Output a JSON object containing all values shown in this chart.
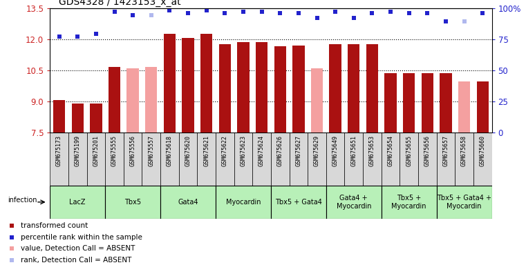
{
  "title": "GDS4328 / 1423153_x_at",
  "samples": [
    "GSM675173",
    "GSM675199",
    "GSM675201",
    "GSM675555",
    "GSM675556",
    "GSM675557",
    "GSM675618",
    "GSM675620",
    "GSM675621",
    "GSM675622",
    "GSM675623",
    "GSM675624",
    "GSM675626",
    "GSM675627",
    "GSM675629",
    "GSM675649",
    "GSM675651",
    "GSM675653",
    "GSM675654",
    "GSM675655",
    "GSM675656",
    "GSM675657",
    "GSM675658",
    "GSM675660"
  ],
  "bar_values": [
    9.05,
    8.9,
    8.9,
    10.65,
    10.6,
    10.65,
    12.25,
    12.05,
    12.25,
    11.75,
    11.85,
    11.85,
    11.65,
    11.7,
    10.6,
    11.75,
    11.75,
    11.75,
    10.35,
    10.35,
    10.35,
    10.35,
    9.95,
    9.95
  ],
  "bar_absent": [
    false,
    false,
    false,
    false,
    true,
    true,
    false,
    false,
    false,
    false,
    false,
    false,
    false,
    false,
    true,
    false,
    false,
    false,
    false,
    false,
    false,
    false,
    true,
    false
  ],
  "rank_values": [
    77,
    77,
    79,
    97,
    94,
    94,
    98,
    96,
    98,
    96,
    97,
    97,
    96,
    96,
    92,
    97,
    92,
    96,
    97,
    96,
    96,
    89,
    89,
    96
  ],
  "rank_absent": [
    false,
    false,
    false,
    false,
    false,
    true,
    false,
    false,
    false,
    false,
    false,
    false,
    false,
    false,
    false,
    false,
    false,
    false,
    false,
    false,
    false,
    false,
    true,
    false
  ],
  "groups": [
    {
      "label": "LacZ",
      "start": 0,
      "end": 3
    },
    {
      "label": "Tbx5",
      "start": 3,
      "end": 6
    },
    {
      "label": "Gata4",
      "start": 6,
      "end": 9
    },
    {
      "label": "Myocardin",
      "start": 9,
      "end": 12
    },
    {
      "label": "Tbx5 + Gata4",
      "start": 12,
      "end": 15
    },
    {
      "label": "Gata4 +\nMyocardin",
      "start": 15,
      "end": 18
    },
    {
      "label": "Tbx5 +\nMyocardin",
      "start": 18,
      "end": 21
    },
    {
      "label": "Tbx5 + Gata4 +\nMyocardin",
      "start": 21,
      "end": 24
    }
  ],
  "ylim_left": [
    7.5,
    13.5
  ],
  "ylim_right": [
    0,
    100
  ],
  "yticks_left": [
    7.5,
    9.0,
    10.5,
    12.0,
    13.5
  ],
  "yticks_right": [
    0,
    25,
    50,
    75,
    100
  ],
  "bar_color_present": "#aa1111",
  "bar_color_absent": "#f4a0a0",
  "rank_color_present": "#2222cc",
  "rank_color_absent": "#b0b8ee",
  "group_color": "#b8f0b8",
  "sample_bg_color": "#d8d8d8",
  "background_color": "#ffffff",
  "legend_items": [
    {
      "color": "#aa1111",
      "label": "transformed count"
    },
    {
      "color": "#2222cc",
      "label": "percentile rank within the sample"
    },
    {
      "color": "#f4a0a0",
      "label": "value, Detection Call = ABSENT"
    },
    {
      "color": "#b0b8ee",
      "label": "rank, Detection Call = ABSENT"
    }
  ]
}
